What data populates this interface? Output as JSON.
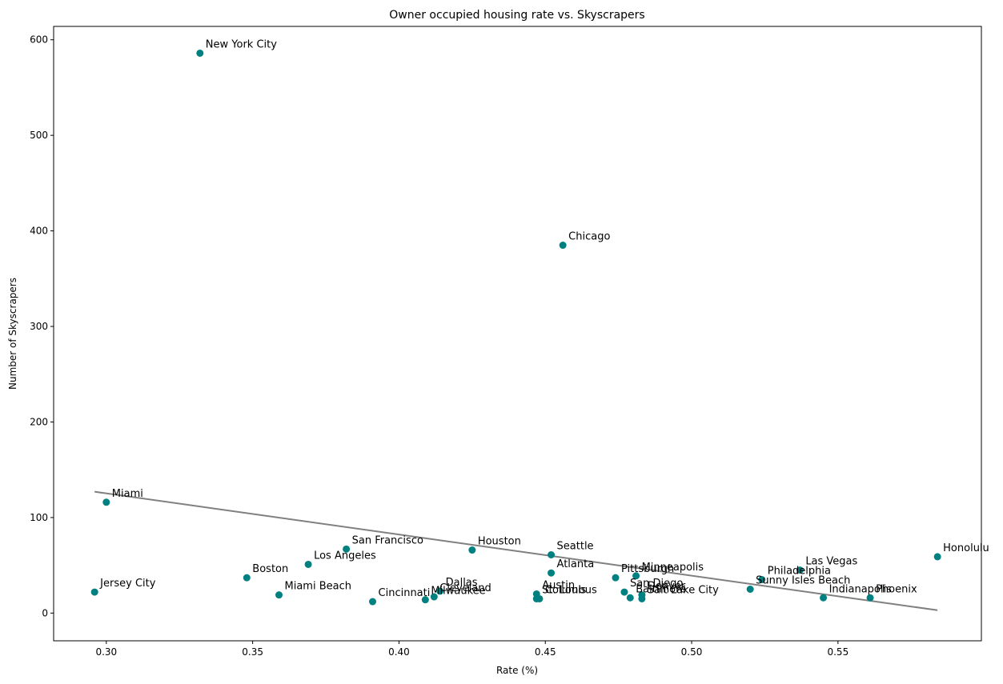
{
  "chart_data": {
    "type": "scatter",
    "title": "Owner occupied housing rate vs. Skyscrapers",
    "xlabel": "Rate (%)",
    "ylabel": "Number of Skyscrapers",
    "xlim": [
      0.282,
      0.599
    ],
    "ylim": [
      -29,
      614
    ],
    "xticks": [
      "0.30",
      "0.35",
      "0.40",
      "0.45",
      "0.50",
      "0.55"
    ],
    "xtick_values": [
      0.3,
      0.35,
      0.4,
      0.45,
      0.5,
      0.55
    ],
    "yticks": [
      "0",
      "100",
      "200",
      "300",
      "400",
      "500",
      "600"
    ],
    "ytick_values": [
      0,
      100,
      200,
      300,
      400,
      500,
      600
    ],
    "grid": false,
    "point_color": "#008080",
    "trend_color": "#808080",
    "trend_line": {
      "x": [
        0.296,
        0.584
      ],
      "y": [
        127,
        3
      ]
    },
    "points": [
      {
        "label": "New York City",
        "x": 0.332,
        "y": 586
      },
      {
        "label": "Chicago",
        "x": 0.456,
        "y": 385
      },
      {
        "label": "Miami",
        "x": 0.3,
        "y": 116
      },
      {
        "label": "Jersey City",
        "x": 0.296,
        "y": 22
      },
      {
        "label": "Boston",
        "x": 0.348,
        "y": 37
      },
      {
        "label": "Miami Beach",
        "x": 0.359,
        "y": 19
      },
      {
        "label": "Los Angeles",
        "x": 0.369,
        "y": 51
      },
      {
        "label": "San Francisco",
        "x": 0.382,
        "y": 67
      },
      {
        "label": "Cincinnati",
        "x": 0.391,
        "y": 12
      },
      {
        "label": "Milwaukee",
        "x": 0.409,
        "y": 14
      },
      {
        "label": "Cleveland",
        "x": 0.412,
        "y": 17
      },
      {
        "label": "Dallas",
        "x": 0.414,
        "y": 23
      },
      {
        "label": "Houston",
        "x": 0.425,
        "y": 66
      },
      {
        "label": "Austin",
        "x": 0.447,
        "y": 20
      },
      {
        "label": "St. Louis",
        "x": 0.447,
        "y": 15
      },
      {
        "label": "Columbus",
        "x": 0.448,
        "y": 15
      },
      {
        "label": "Seattle",
        "x": 0.452,
        "y": 61
      },
      {
        "label": "Atlanta",
        "x": 0.452,
        "y": 42
      },
      {
        "label": "Pittsburgh",
        "x": 0.474,
        "y": 37
      },
      {
        "label": "San Diego",
        "x": 0.477,
        "y": 22
      },
      {
        "label": "Baltimore",
        "x": 0.479,
        "y": 16
      },
      {
        "label": "Minneapolis",
        "x": 0.481,
        "y": 39
      },
      {
        "label": "Denver",
        "x": 0.483,
        "y": 19
      },
      {
        "label": "Salt Lake City",
        "x": 0.483,
        "y": 15
      },
      {
        "label": "Sunny Isles Beach",
        "x": 0.52,
        "y": 25
      },
      {
        "label": "Philadelphia",
        "x": 0.524,
        "y": 35
      },
      {
        "label": "Las Vegas",
        "x": 0.537,
        "y": 45
      },
      {
        "label": "Indianapolis",
        "x": 0.545,
        "y": 16
      },
      {
        "label": "Phoenix",
        "x": 0.561,
        "y": 16
      },
      {
        "label": "Honolulu",
        "x": 0.584,
        "y": 59
      }
    ]
  }
}
